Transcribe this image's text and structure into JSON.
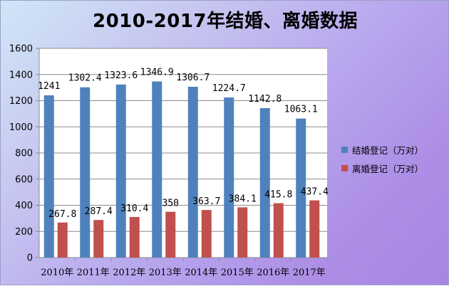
{
  "chart_data": {
    "type": "bar",
    "title": "2010-2017年结婚、离婚数据",
    "categories": [
      "2010年",
      "2011年",
      "2012年",
      "2013年",
      "2014年",
      "2015年",
      "2016年",
      "2017年"
    ],
    "series": [
      {
        "name": "结婚登记（万对）",
        "color": "#4f81bd",
        "values": [
          1241,
          1302.4,
          1323.6,
          1346.9,
          1306.7,
          1224.7,
          1142.8,
          1063.1
        ],
        "labels": [
          "1241",
          "1302.4",
          "1323.6",
          "1346.9",
          "1306.7",
          "1224.7",
          "1142.8",
          "1063.1"
        ]
      },
      {
        "name": "离婚登记（万对）",
        "color": "#c0504d",
        "values": [
          267.8,
          287.4,
          310.4,
          350,
          363.7,
          384.1,
          415.8,
          437.4
        ],
        "labels": [
          "267.8",
          "287.4",
          "310.4",
          "350",
          "363.7",
          "384.1",
          "415.8",
          "437.4"
        ]
      }
    ],
    "ylim": [
      0,
      1600
    ],
    "yticks": [
      "0",
      "200",
      "400",
      "600",
      "800",
      "1000",
      "1200",
      "1400",
      "1600"
    ],
    "grid": true,
    "legend": "right",
    "xlabel": "",
    "ylabel": ""
  }
}
